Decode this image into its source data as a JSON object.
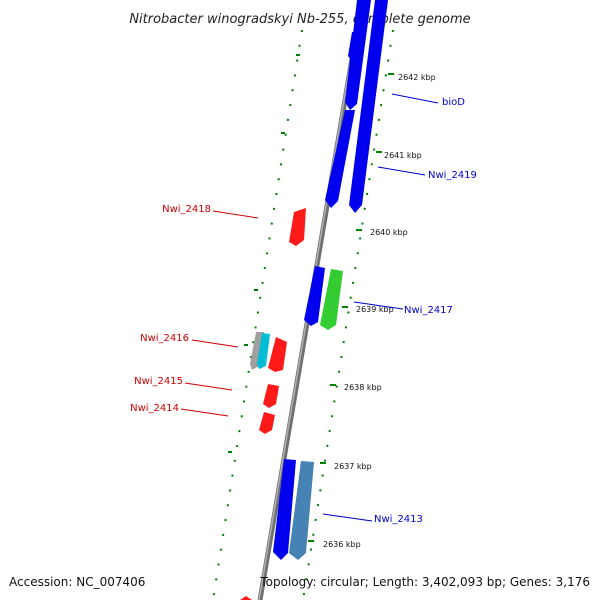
{
  "title": "Nitrobacter winogradskyi Nb-255, complete genome",
  "footer": {
    "accession": "Accession: NC_007406",
    "info": "Topology: circular; Length: 3,402,093 bp; Genes: 3,176"
  },
  "ticks": [
    {
      "label": "2642 kbp"
    },
    {
      "label": "2641 kbp"
    },
    {
      "label": "2640 kbp"
    },
    {
      "label": "2639 kbp"
    },
    {
      "label": "2638 kbp"
    },
    {
      "label": "2637 kbp"
    },
    {
      "label": "2636 kbp"
    }
  ],
  "gene_labels": [
    {
      "text": "bioD",
      "color": "#0000cc"
    },
    {
      "text": "Nwi_2419",
      "color": "#0000cc"
    },
    {
      "text": "Nwi_2418",
      "color": "#cc0000"
    },
    {
      "text": "Nwi_2417",
      "color": "#0000cc"
    },
    {
      "text": "Nwi_2416",
      "color": "#cc0000"
    },
    {
      "text": "Nwi_2415",
      "color": "#cc0000"
    },
    {
      "text": "Nwi_2414",
      "color": "#cc0000"
    },
    {
      "text": "Nwi_2413",
      "color": "#0000cc"
    }
  ],
  "colors": {
    "backbone": "#808080",
    "forward": "#0000ff",
    "reverse": "#ff0000",
    "green_feature": "#33cc33",
    "steel_feature": "#4682b4",
    "cyan_feature": "#00bcd4",
    "grey_feature": "#a0a0a0",
    "tick_marks": "#008000"
  }
}
